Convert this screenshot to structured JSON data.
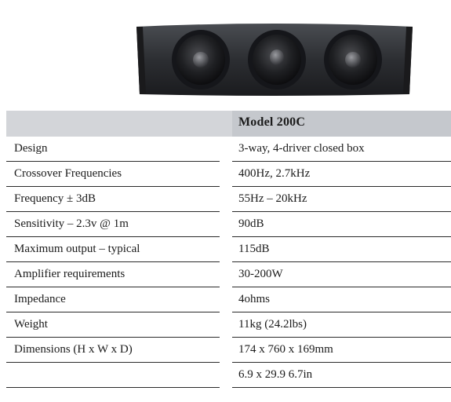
{
  "product_image": {
    "icon": "center-channel-speaker-photo"
  },
  "table": {
    "model": "Model 200C",
    "rows": [
      {
        "label": "Design",
        "value": "3-way, 4-driver closed box"
      },
      {
        "label": "Crossover Frequencies",
        "value": "400Hz, 2.7kHz"
      },
      {
        "label": "Frequency ± 3dB",
        "value": "55Hz – 20kHz"
      },
      {
        "label": "Sensitivity – 2.3v @ 1m",
        "value": "90dB"
      },
      {
        "label": "Maximum output – typical",
        "value": "115dB"
      },
      {
        "label": "Amplifier requirements",
        "value": "30-200W"
      },
      {
        "label": "Impedance",
        "value": "4ohms"
      },
      {
        "label": "Weight",
        "value": "11kg (24.2lbs)"
      },
      {
        "label": "Dimensions (H x W x D)",
        "value": "174 x 760 x 169mm"
      },
      {
        "label": "",
        "value": "6.9 x 29.9 6.7in"
      }
    ]
  }
}
